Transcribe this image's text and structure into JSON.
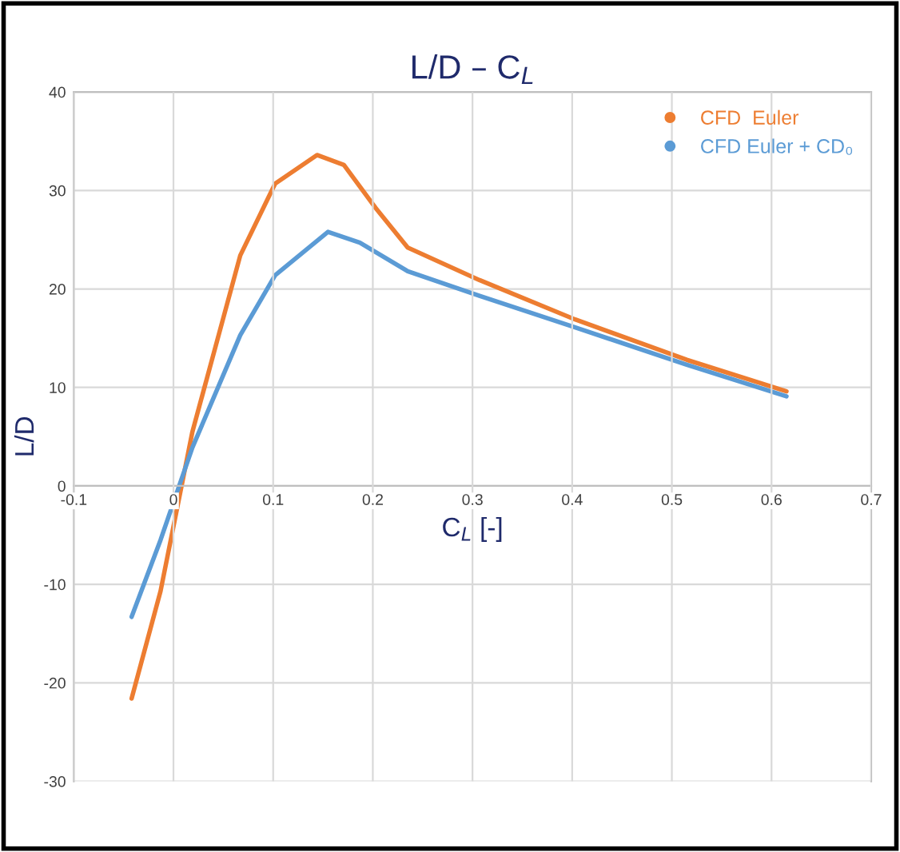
{
  "chart_data": {
    "type": "line",
    "title": "L/D – C$_{L}$",
    "xlabel": "C$_{L}$ [-]",
    "ylabel": "L/D",
    "xlim": [
      -0.1,
      0.7
    ],
    "xticks": [
      -0.1,
      0,
      0.1,
      0.2,
      0.3,
      0.4,
      0.5,
      0.6,
      0.7
    ],
    "ylim": [
      -30,
      40
    ],
    "yticks": [
      -30,
      -20,
      -10,
      0,
      10,
      20,
      30,
      40
    ],
    "grid": true,
    "legend": "top right",
    "series": [
      {
        "name": "CFD  Euler",
        "color": "#ed7d31",
        "x": [
          -0.042,
          -0.013,
          0.019,
          0.067,
          0.102,
          0.144,
          0.171,
          0.203,
          0.235,
          0.307,
          0.403,
          0.515,
          0.615
        ],
        "values": [
          -21.6,
          -10.7,
          5.5,
          23.4,
          30.7,
          33.6,
          32.6,
          28.2,
          24.2,
          20.9,
          16.9,
          12.8,
          9.6
        ]
      },
      {
        "name": "CFD Euler + CD₀",
        "color": "#5b9bd5",
        "x": [
          -0.042,
          -0.013,
          0.019,
          0.067,
          0.102,
          0.155,
          0.187,
          0.235,
          0.307,
          0.403,
          0.515,
          0.615
        ],
        "values": [
          -13.3,
          -5.5,
          3.9,
          15.3,
          21.4,
          25.8,
          24.7,
          21.8,
          19.3,
          16.1,
          12.3,
          9.1
        ]
      }
    ]
  }
}
